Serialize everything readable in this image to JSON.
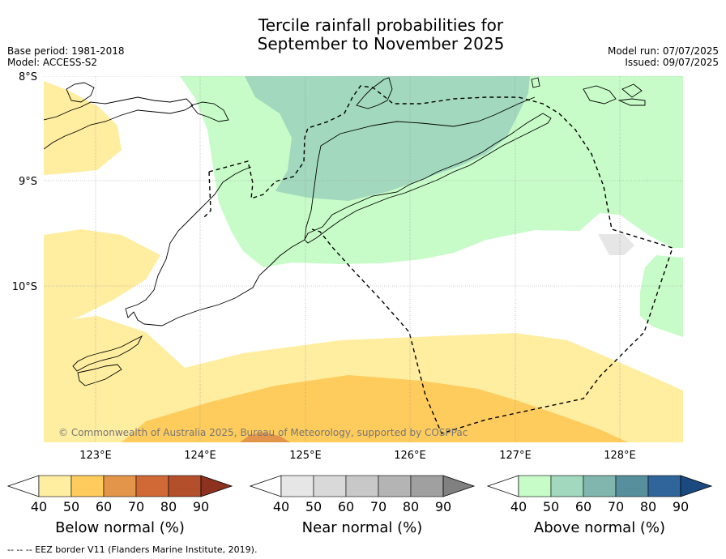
{
  "title_line1": "Tercile rainfall probabilities for",
  "title_line2": "September to November 2025",
  "base_period": "Base period: 1981-2018",
  "model": "Model: ACCESS-S2",
  "model_run": "Model run: 07/07/2025",
  "issued": "Issued: 09/07/2025",
  "copyright": "© Commonwealth of Australia 2025, Bureau of Meteorology, supported by COSPPac",
  "footer_note": "--  --  -- EEZ border V11 (Flanders Marine Institute, 2019).",
  "map": {
    "lon_range": [
      122.5,
      128.6
    ],
    "lat_range": [
      -11.5,
      -8.0
    ],
    "lon_ticks": [
      {
        "value": 123,
        "label": "123°E"
      },
      {
        "value": 124,
        "label": "124°E"
      },
      {
        "value": 125,
        "label": "125°E"
      },
      {
        "value": 126,
        "label": "126°E"
      },
      {
        "value": 127,
        "label": "127°E"
      },
      {
        "value": 128,
        "label": "128°E"
      }
    ],
    "lat_ticks": [
      {
        "value": -8,
        "label": "8°S"
      },
      {
        "value": -9,
        "label": "9°S"
      },
      {
        "value": -10,
        "label": "10°S"
      }
    ]
  },
  "legends": [
    {
      "title": "Below normal (%)",
      "labels": [
        "40",
        "50",
        "60",
        "70",
        "80",
        "90"
      ],
      "colors": [
        "#ffffff",
        "#ffeda0",
        "#fecc5c",
        "#e3954a",
        "#d06935",
        "#b44f2c",
        "#8e3220"
      ]
    },
    {
      "title": "Near normal (%)",
      "labels": [
        "40",
        "50",
        "60",
        "70",
        "80",
        "90"
      ],
      "colors": [
        "#ffffff",
        "#e6e6e6",
        "#d9d9d9",
        "#c8c8c8",
        "#b4b4b4",
        "#a0a0a0",
        "#808080"
      ]
    },
    {
      "title": "Above normal (%)",
      "labels": [
        "40",
        "50",
        "60",
        "70",
        "80",
        "90"
      ],
      "colors": [
        "#ffffff",
        "#c7fcc8",
        "#a2d8bd",
        "#80b6ad",
        "#588f9d",
        "#30659b",
        "#1a4a80"
      ]
    }
  ]
}
